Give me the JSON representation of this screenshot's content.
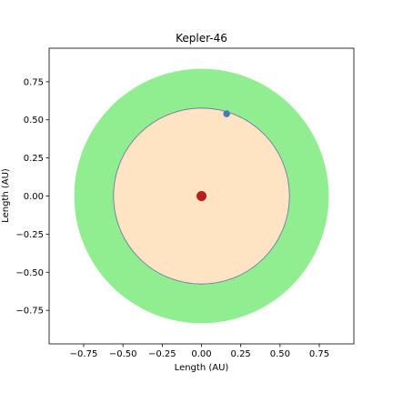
{
  "chart_data": {
    "type": "scatter",
    "title": "Kepler-46",
    "xlabel": "Length (AU)",
    "ylabel": "Length (AU)",
    "xlim": [
      -0.97,
      0.97
    ],
    "ylim": [
      -0.97,
      0.97
    ],
    "xticks": [
      -0.75,
      -0.5,
      -0.25,
      0.0,
      0.25,
      0.5,
      0.75
    ],
    "yticks": [
      -0.75,
      -0.5,
      -0.25,
      0.0,
      0.25,
      0.5,
      0.75
    ],
    "tick_labels_x": [
      "−0.75",
      "−0.50",
      "−0.25",
      "0.00",
      "0.25",
      "0.50",
      "0.75"
    ],
    "tick_labels_y": [
      "−0.75",
      "−0.50",
      "−0.25",
      "0.00",
      "0.25",
      "0.50",
      "0.75"
    ],
    "grid": false,
    "regions": [
      {
        "shape": "annulus",
        "center": [
          0,
          0
        ],
        "inner_radius": 0.56,
        "outer_radius": 0.81,
        "color": "#90ee90"
      },
      {
        "shape": "disk",
        "center": [
          0,
          0
        ],
        "radius": 0.56,
        "color": "#ffe4c4",
        "edge_color": "#6a6aa8"
      }
    ],
    "points": [
      {
        "x": 0.0,
        "y": 0.0,
        "color": "#b22222",
        "size": "large"
      },
      {
        "x": 0.16,
        "y": 0.54,
        "color": "#4a7bb0",
        "size": "small"
      }
    ]
  }
}
